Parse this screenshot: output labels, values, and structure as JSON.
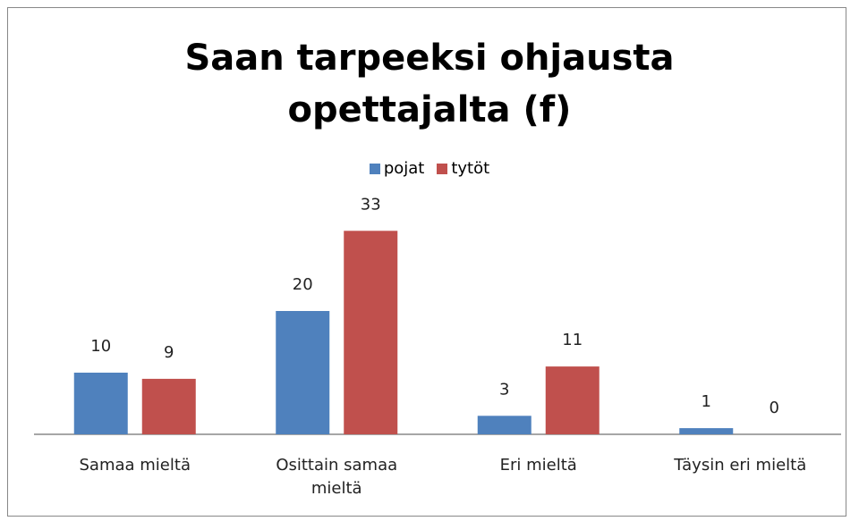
{
  "chart_data": {
    "type": "bar",
    "title": "Saan tarpeeksi ohjausta opettajalta (f)",
    "categories": [
      "Samaa mieltä",
      "Osittain samaa mieltä",
      "Eri mieltä",
      "Täysin eri mieltä"
    ],
    "series": [
      {
        "name": "pojat",
        "color": "#4f81bd",
        "values": [
          10,
          20,
          3,
          1
        ]
      },
      {
        "name": "tytöt",
        "color": "#c0504d",
        "values": [
          9,
          33,
          11,
          0
        ]
      }
    ],
    "legend": "top"
  }
}
